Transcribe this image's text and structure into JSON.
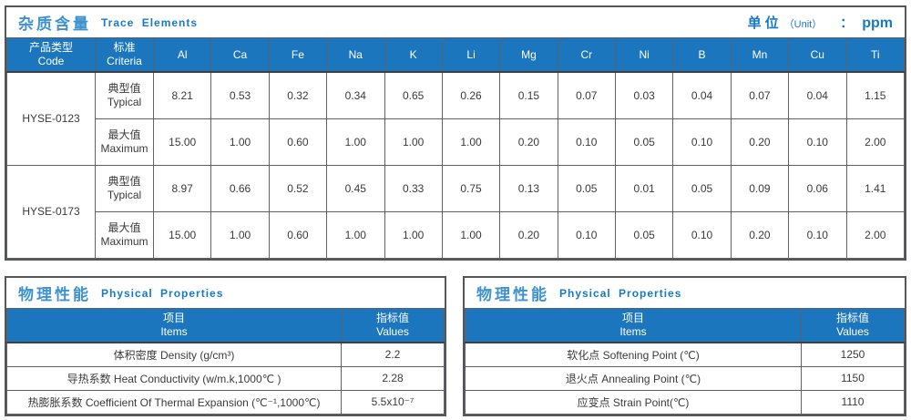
{
  "colors": {
    "accent_blue": "#1c76bd",
    "title_blue": "#3e92cf",
    "subtitle_blue": "#177ac6",
    "border_dark": "#55565a",
    "text_dark": "#3a3a3c"
  },
  "trace": {
    "title_zh": "杂质含量",
    "title_en": "Trace Elements",
    "unit_label_zh": "单位",
    "unit_label_en": "（Unit）",
    "unit_colon": "：",
    "unit_value": "ppm",
    "header": {
      "code_zh": "产品类型",
      "code_en": "Code",
      "criteria_zh": "标准",
      "criteria_en": "Criteria",
      "elements": [
        "Al",
        "Ca",
        "Fe",
        "Na",
        "K",
        "Li",
        "Mg",
        "Cr",
        "Ni",
        "B",
        "Mn",
        "Cu",
        "Ti"
      ]
    },
    "groups": [
      {
        "code": "HYSE-0123",
        "rows": [
          {
            "label_zh": "典型值",
            "label_en": "Typical",
            "values": [
              "8.21",
              "0.53",
              "0.32",
              "0.34",
              "0.65",
              "0.26",
              "0.15",
              "0.07",
              "0.03",
              "0.04",
              "0.07",
              "0.04",
              "1.15"
            ]
          },
          {
            "label_zh": "最大值",
            "label_en": "Maximum",
            "values": [
              "15.00",
              "1.00",
              "0.60",
              "1.00",
              "1.00",
              "1.00",
              "0.20",
              "0.10",
              "0.05",
              "0.10",
              "0.20",
              "0.10",
              "2.00"
            ]
          }
        ]
      },
      {
        "code": "HYSE-0173",
        "rows": [
          {
            "label_zh": "典型值",
            "label_en": "Typical",
            "values": [
              "8.97",
              "0.66",
              "0.52",
              "0.45",
              "0.33",
              "0.75",
              "0.13",
              "0.05",
              "0.01",
              "0.05",
              "0.09",
              "0.06",
              "1.41"
            ]
          },
          {
            "label_zh": "最大值",
            "label_en": "Maximum",
            "values": [
              "15.00",
              "1.00",
              "0.60",
              "1.00",
              "1.00",
              "1.00",
              "0.20",
              "0.10",
              "0.05",
              "0.10",
              "0.20",
              "0.10",
              "2.00"
            ]
          }
        ]
      }
    ]
  },
  "physical_left": {
    "title_zh": "物理性能",
    "title_en": "Physical Properties",
    "header": {
      "items_zh": "项目",
      "items_en": "Items",
      "values_zh": "指标值",
      "values_en": "Values"
    },
    "rows": [
      {
        "item": "体积密度 Density (g/cm³)",
        "value": "2.2"
      },
      {
        "item": "导热系数 Heat Conductivity (w/m.k,1000℃ )",
        "value": "2.28"
      },
      {
        "item": "热膨胀系数 Coefficient Of Thermal Expansion (℃⁻¹,1000℃)",
        "value": "5.5x10⁻⁷"
      }
    ]
  },
  "physical_right": {
    "title_zh": "物理性能",
    "title_en": "Physical Properties",
    "header": {
      "items_zh": "项目",
      "items_en": "Items",
      "values_zh": "指标值",
      "values_en": "Values"
    },
    "rows": [
      {
        "item": "软化点 Softening Point (℃)",
        "value": "1250"
      },
      {
        "item": "退火点 Annealing Point (℃)",
        "value": "1150"
      },
      {
        "item": "应变点 Strain Point(℃)",
        "value": "1110"
      }
    ]
  }
}
